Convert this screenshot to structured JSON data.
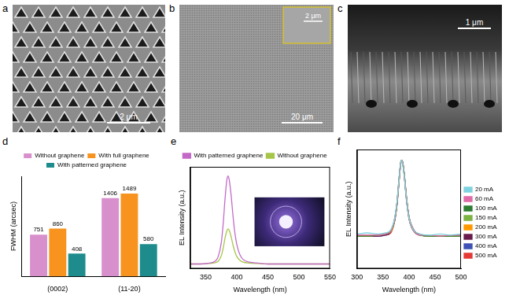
{
  "panel_labels": [
    "a",
    "b",
    "c",
    "d",
    "e",
    "f"
  ],
  "images": [
    {
      "scale_bar": "2 μm"
    },
    {
      "scale_bar": "20 μm",
      "inset_scale_bar": "2 μm"
    },
    {
      "scale_bar": "1 μm"
    }
  ],
  "chart_data": [
    {
      "type": "bar",
      "y_label": "FWHM (arcsec)",
      "categories": [
        "(0002)",
        "(11-20)"
      ],
      "series": [
        {
          "name": "Without graphene",
          "color": "#d890cc",
          "values": [
            751,
            1406
          ]
        },
        {
          "name": "With full graphene",
          "color": "#f7931e",
          "values": [
            860,
            1489
          ]
        },
        {
          "name": "With patterned graphene",
          "color": "#1e8c8c",
          "values": [
            408,
            580
          ]
        }
      ],
      "ylim": [
        0,
        1800
      ],
      "yticks": [],
      "tick_labels": "x",
      "data_labels": true,
      "legend": "top",
      "grid": false
    },
    {
      "type": "line",
      "x_label": "Wavelength (nm)",
      "y_label": "EL Intensity (a.u.)",
      "x": [
        325,
        340,
        355,
        365,
        370,
        375,
        378,
        381,
        384,
        386,
        388,
        391,
        394,
        397,
        400,
        405,
        410,
        420,
        435,
        450,
        475,
        500,
        525,
        550
      ],
      "series": [
        {
          "name": "With patterned graphene",
          "color": "#c36ac8",
          "values": [
            0.05,
            0.05,
            0.06,
            0.08,
            0.13,
            0.28,
            0.48,
            0.75,
            0.96,
            1.0,
            0.95,
            0.78,
            0.56,
            0.38,
            0.26,
            0.15,
            0.1,
            0.07,
            0.06,
            0.05,
            0.05,
            0.05,
            0.05,
            0.05
          ]
        },
        {
          "name": "Without graphene",
          "color": "#a6c64a",
          "values": [
            0.05,
            0.05,
            0.055,
            0.065,
            0.08,
            0.14,
            0.22,
            0.33,
            0.41,
            0.43,
            0.41,
            0.34,
            0.25,
            0.18,
            0.13,
            0.09,
            0.07,
            0.06,
            0.055,
            0.05,
            0.05,
            0.05,
            0.05,
            0.05
          ]
        }
      ],
      "xlim": [
        325,
        550
      ],
      "xticks": [
        350,
        400,
        450,
        500,
        550
      ],
      "ylim": [
        0,
        1.1
      ],
      "yticks": [],
      "tick_labels": "x",
      "legend": "top",
      "grid": false
    },
    {
      "type": "line",
      "x_label": "Wavelength (nm)",
      "y_label": "EL Intensity (a.u.)",
      "x": [
        300,
        320,
        340,
        355,
        365,
        372,
        377,
        381,
        384,
        386,
        388,
        391,
        395,
        400,
        405,
        412,
        420,
        440,
        460,
        480,
        500
      ],
      "series": [
        {
          "name": "20 mA",
          "color": "#7fd3e0",
          "values": [
            0.32,
            0.33,
            0.32,
            0.33,
            0.36,
            0.46,
            0.62,
            0.83,
            0.97,
            1.0,
            0.96,
            0.85,
            0.65,
            0.47,
            0.39,
            0.34,
            0.32,
            0.31,
            0.32,
            0.31,
            0.32
          ]
        },
        {
          "name": "60 mA",
          "color": "#e06aa8",
          "values": [
            0.31,
            0.31,
            0.31,
            0.32,
            0.35,
            0.45,
            0.62,
            0.84,
            0.98,
            1.0,
            0.97,
            0.85,
            0.64,
            0.46,
            0.38,
            0.33,
            0.31,
            0.31,
            0.3,
            0.31,
            0.31
          ]
        },
        {
          "name": "100 mA",
          "color": "#2e7d32",
          "values": [
            0.3,
            0.3,
            0.31,
            0.32,
            0.35,
            0.45,
            0.61,
            0.84,
            0.98,
            1.0,
            0.97,
            0.85,
            0.64,
            0.46,
            0.38,
            0.33,
            0.31,
            0.3,
            0.3,
            0.3,
            0.3
          ]
        },
        {
          "name": "150 mA",
          "color": "#7cb342",
          "values": [
            0.3,
            0.3,
            0.31,
            0.32,
            0.35,
            0.44,
            0.61,
            0.83,
            0.98,
            1.0,
            0.97,
            0.86,
            0.65,
            0.47,
            0.38,
            0.33,
            0.31,
            0.3,
            0.3,
            0.3,
            0.3
          ]
        },
        {
          "name": "200 mA",
          "color": "#ff9800",
          "values": [
            0.3,
            0.3,
            0.31,
            0.32,
            0.34,
            0.44,
            0.61,
            0.83,
            0.97,
            1.0,
            0.97,
            0.86,
            0.65,
            0.47,
            0.39,
            0.33,
            0.31,
            0.3,
            0.3,
            0.3,
            0.3
          ]
        },
        {
          "name": "300 mA",
          "color": "#6a1b4d",
          "values": [
            0.3,
            0.3,
            0.3,
            0.31,
            0.34,
            0.44,
            0.6,
            0.82,
            0.97,
            1.0,
            0.98,
            0.86,
            0.66,
            0.47,
            0.39,
            0.34,
            0.31,
            0.3,
            0.3,
            0.3,
            0.3
          ]
        },
        {
          "name": "400 mA",
          "color": "#3f51b5",
          "values": [
            0.3,
            0.3,
            0.3,
            0.31,
            0.34,
            0.43,
            0.6,
            0.82,
            0.97,
            1.0,
            0.98,
            0.87,
            0.66,
            0.48,
            0.39,
            0.34,
            0.31,
            0.3,
            0.3,
            0.3,
            0.3
          ]
        },
        {
          "name": "500 mA",
          "color": "#e53935",
          "values": [
            0.3,
            0.3,
            0.3,
            0.31,
            0.33,
            0.43,
            0.59,
            0.81,
            0.96,
            1.0,
            0.98,
            0.87,
            0.67,
            0.48,
            0.4,
            0.34,
            0.32,
            0.3,
            0.3,
            0.3,
            0.3
          ]
        }
      ],
      "xlim": [
        300,
        500
      ],
      "xticks": [
        300,
        350,
        400,
        450,
        500
      ],
      "ylim": [
        0,
        1.1
      ],
      "yticks": [],
      "tick_labels": "x",
      "legend": "right",
      "grid": false
    }
  ]
}
